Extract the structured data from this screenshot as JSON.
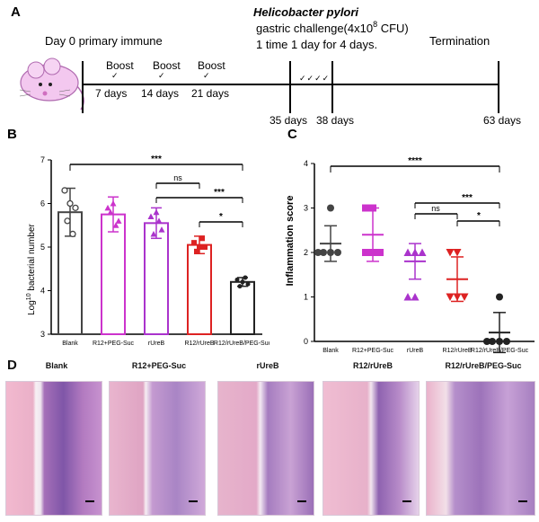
{
  "panelA": {
    "letter": "A",
    "primary": "Day 0 primary immune",
    "boost_label": "Boost",
    "boosts": [
      "7 days",
      "14 days",
      "21 days"
    ],
    "hp_title": "Helicobacter pylori",
    "challenge_line1": "gastric challenge(4x10",
    "challenge_exp": "8",
    "challenge_unit": " CFU)",
    "challenge_line2": "1 time 1 day for 4 days.",
    "termination": "Termination",
    "day35": "35 days",
    "day38": "38 days",
    "day63": "63 days",
    "check_marks": "✓✓✓✓"
  },
  "panelB": {
    "letter": "B",
    "ylabel_pre": "Log",
    "ylabel_sup": "10",
    "ylabel_post": " bacterial number",
    "sig": [
      "***",
      "ns",
      "***",
      "*"
    ]
  },
  "panelC": {
    "letter": "C",
    "ylabel": "Inflammation score",
    "sig": [
      "****",
      "***",
      "ns",
      "*"
    ]
  },
  "panelD": {
    "letter": "D",
    "labels": [
      "Blank",
      "R12+PEG-Suc",
      "rUreB",
      "R12/rUreB",
      "R12/rUreB/PEG-Suc"
    ]
  },
  "colors": {
    "blank": "#444444",
    "peg": "#cc33cc",
    "rureb": "#aa33cc",
    "r12rureb": "#dd2222",
    "combo": "#222222"
  },
  "chart_data": [
    {
      "type": "bar",
      "categories": [
        "Blank",
        "R12+PEG-Suc",
        "rUreB",
        "R12/rUreB",
        "R12/rUreB/PEG-Suc"
      ],
      "values": [
        5.8,
        5.75,
        5.55,
        5.05,
        4.2
      ],
      "errors": [
        0.55,
        0.4,
        0.35,
        0.2,
        0.1
      ],
      "points": [
        [
          6.3,
          5.9,
          5.6,
          5.3,
          6.0
        ],
        [
          5.9,
          5.6,
          5.8,
          5.5,
          6.0
        ],
        [
          5.7,
          5.4,
          5.3,
          5.6,
          5.8
        ],
        [
          5.1,
          5.0,
          4.9,
          5.2,
          5.0
        ],
        [
          4.25,
          4.15,
          4.1,
          4.3,
          4.2
        ]
      ],
      "yticks": [
        "3",
        "4",
        "5",
        "6",
        "7"
      ],
      "ylim": [
        3,
        7
      ]
    },
    {
      "type": "scatter",
      "categories": [
        "Blank",
        "R12+PEG-Suc",
        "rUreB",
        "R12/rUreB",
        "R12/rUreB/PEG-Suc"
      ],
      "means": [
        2.2,
        2.4,
        1.8,
        1.4,
        0.2
      ],
      "sd": [
        0.4,
        0.6,
        0.4,
        0.5,
        0.45
      ],
      "points": [
        [
          3.0,
          2.0,
          2.0,
          2.0,
          2.0
        ],
        [
          3.0,
          3.0,
          2.0,
          2.0,
          2.0
        ],
        [
          2.0,
          2.0,
          2.0,
          1.0,
          1.0
        ],
        [
          2.0,
          1.0,
          1.0,
          1.0,
          2.0
        ],
        [
          1.0,
          0.0,
          0.0,
          0.0,
          0.0
        ]
      ],
      "yticks": [
        "0",
        "1",
        "2",
        "3",
        "4"
      ],
      "ylim": [
        0,
        4
      ]
    }
  ]
}
